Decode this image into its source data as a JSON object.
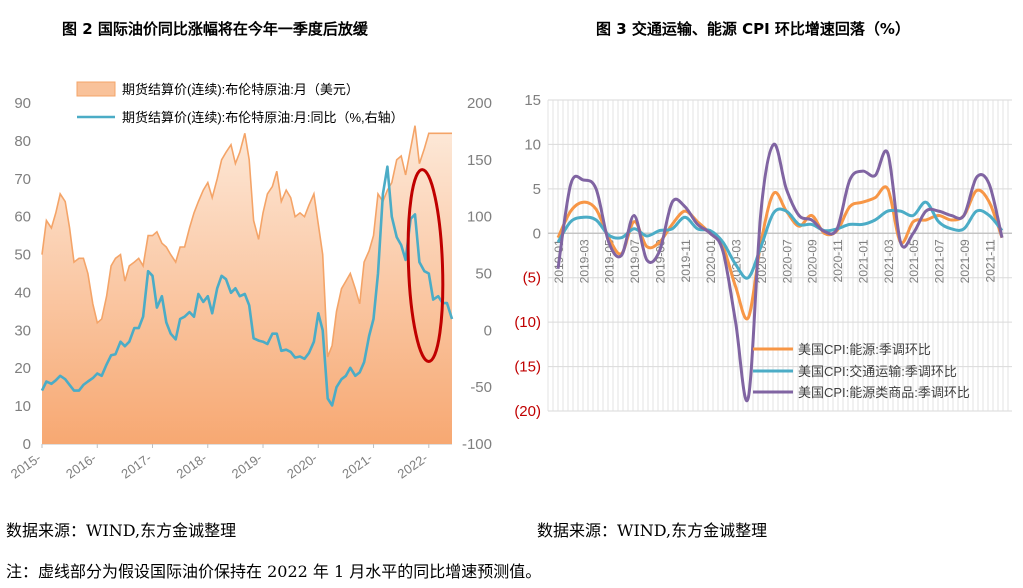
{
  "titles": {
    "left": "图 2   国际油价同比涨幅将在今年一季度后放缓",
    "right": "图 3  交通运输、能源 CPI 环比增速回落（%）"
  },
  "sources": {
    "left": "数据来源：WIND,东方金诚整理",
    "right": "数据来源：WIND,东方金诚整理"
  },
  "note": "注：虚线部分为假设国际油价保持在 2022 年 1 月水平的同比增速预测值。",
  "colors": {
    "area_top": "#F4A468",
    "area_fill_light": "#FDE7D4",
    "area_fill_dark": "#F6B183",
    "teal": "#4BACC6",
    "orange": "#F79646",
    "purple": "#8064A2",
    "red_ellipse": "#C00000",
    "neg_label": "#C00000"
  },
  "chart_data": [
    {
      "type": "area+line",
      "title": "",
      "legend": [
        "期货结算价(连续):布伦特原油:月（美元）",
        "期货结算价(连续):布伦特原油:月:同比（%,右轴）"
      ],
      "legend_position": "top",
      "x_tick_labels": [
        "2015-",
        "2016-",
        "2017-",
        "2018-",
        "2019-",
        "2020-",
        "2021-",
        "2022-"
      ],
      "x_range": [
        2015.0,
        2022.42
      ],
      "y_left": {
        "range": [
          0,
          90
        ],
        "ticks": [
          0,
          10,
          20,
          30,
          40,
          50,
          60,
          70,
          80,
          90
        ]
      },
      "y_right": {
        "range": [
          -100,
          200
        ],
        "ticks": [
          -100,
          -50,
          0,
          50,
          100,
          150,
          200
        ]
      },
      "series": [
        {
          "name": "期货结算价(连续):布伦特原油:月（美元）",
          "type": "area",
          "axis": "left",
          "points": [
            [
              2015.0,
              50
            ],
            [
              2015.08,
              59
            ],
            [
              2015.17,
              57
            ],
            [
              2015.25,
              61
            ],
            [
              2015.33,
              66
            ],
            [
              2015.42,
              64
            ],
            [
              2015.5,
              57
            ],
            [
              2015.58,
              48
            ],
            [
              2015.67,
              49
            ],
            [
              2015.75,
              49
            ],
            [
              2015.83,
              45
            ],
            [
              2015.92,
              37
            ],
            [
              2016.0,
              32
            ],
            [
              2016.08,
              33
            ],
            [
              2016.17,
              39
            ],
            [
              2016.25,
              47
            ],
            [
              2016.33,
              49
            ],
            [
              2016.42,
              50
            ],
            [
              2016.5,
              43
            ],
            [
              2016.58,
              47
            ],
            [
              2016.67,
              48
            ],
            [
              2016.75,
              49
            ],
            [
              2016.83,
              47
            ],
            [
              2016.92,
              55
            ],
            [
              2017.0,
              55
            ],
            [
              2017.08,
              56
            ],
            [
              2017.17,
              53
            ],
            [
              2017.25,
              52
            ],
            [
              2017.33,
              50
            ],
            [
              2017.42,
              48
            ],
            [
              2017.5,
              52
            ],
            [
              2017.58,
              52
            ],
            [
              2017.67,
              57
            ],
            [
              2017.75,
              61
            ],
            [
              2017.83,
              64
            ],
            [
              2017.92,
              67
            ],
            [
              2018.0,
              69
            ],
            [
              2018.08,
              65
            ],
            [
              2018.17,
              70
            ],
            [
              2018.25,
              75
            ],
            [
              2018.33,
              77
            ],
            [
              2018.42,
              79
            ],
            [
              2018.5,
              74
            ],
            [
              2018.58,
              77
            ],
            [
              2018.67,
              82
            ],
            [
              2018.75,
              75
            ],
            [
              2018.83,
              59
            ],
            [
              2018.92,
              54
            ],
            [
              2019.0,
              61
            ],
            [
              2019.08,
              66
            ],
            [
              2019.17,
              68
            ],
            [
              2019.25,
              72
            ],
            [
              2019.33,
              64
            ],
            [
              2019.42,
              67
            ],
            [
              2019.5,
              65
            ],
            [
              2019.58,
              60
            ],
            [
              2019.67,
              61
            ],
            [
              2019.75,
              60
            ],
            [
              2019.83,
              63
            ],
            [
              2019.92,
              66
            ],
            [
              2020.0,
              58
            ],
            [
              2020.08,
              50
            ],
            [
              2020.17,
              23
            ],
            [
              2020.25,
              26
            ],
            [
              2020.33,
              35
            ],
            [
              2020.42,
              41
            ],
            [
              2020.5,
              43
            ],
            [
              2020.58,
              45
            ],
            [
              2020.67,
              41
            ],
            [
              2020.75,
              37
            ],
            [
              2020.83,
              48
            ],
            [
              2020.92,
              51
            ],
            [
              2021.0,
              55
            ],
            [
              2021.08,
              66
            ],
            [
              2021.17,
              64
            ],
            [
              2021.25,
              67
            ],
            [
              2021.33,
              69
            ],
            [
              2021.42,
              75
            ],
            [
              2021.5,
              76
            ],
            [
              2021.58,
              71
            ],
            [
              2021.67,
              78
            ],
            [
              2021.75,
              84
            ],
            [
              2021.83,
              74
            ],
            [
              2021.92,
              78
            ],
            [
              2022.0,
              82
            ],
            [
              2022.08,
              82
            ],
            [
              2022.17,
              82
            ],
            [
              2022.25,
              82
            ],
            [
              2022.33,
              82
            ],
            [
              2022.42,
              82
            ]
          ]
        },
        {
          "name": "期货结算价(连续):布伦特原油:月:同比（%,右轴）",
          "type": "line",
          "axis": "right",
          "points": [
            [
              2015.0,
              -53
            ],
            [
              2015.08,
              -45
            ],
            [
              2015.17,
              -47
            ],
            [
              2015.25,
              -44
            ],
            [
              2015.33,
              -40
            ],
            [
              2015.42,
              -43
            ],
            [
              2015.5,
              -48
            ],
            [
              2015.58,
              -53
            ],
            [
              2015.67,
              -53
            ],
            [
              2015.75,
              -48
            ],
            [
              2015.83,
              -45
            ],
            [
              2015.92,
              -42
            ],
            [
              2016.0,
              -38
            ],
            [
              2016.08,
              -40
            ],
            [
              2016.17,
              -30
            ],
            [
              2016.25,
              -22
            ],
            [
              2016.33,
              -21
            ],
            [
              2016.42,
              -10
            ],
            [
              2016.5,
              -14
            ],
            [
              2016.58,
              -10
            ],
            [
              2016.67,
              2
            ],
            [
              2016.75,
              2
            ],
            [
              2016.83,
              12
            ],
            [
              2016.92,
              52
            ],
            [
              2017.0,
              48
            ],
            [
              2017.08,
              20
            ],
            [
              2017.17,
              30
            ],
            [
              2017.25,
              7
            ],
            [
              2017.33,
              -3
            ],
            [
              2017.42,
              -8
            ],
            [
              2017.5,
              10
            ],
            [
              2017.58,
              12
            ],
            [
              2017.67,
              16
            ],
            [
              2017.75,
              12
            ],
            [
              2017.83,
              32
            ],
            [
              2017.92,
              25
            ],
            [
              2018.0,
              30
            ],
            [
              2018.08,
              15
            ],
            [
              2018.17,
              37
            ],
            [
              2018.25,
              48
            ],
            [
              2018.33,
              45
            ],
            [
              2018.42,
              33
            ],
            [
              2018.5,
              37
            ],
            [
              2018.58,
              30
            ],
            [
              2018.67,
              32
            ],
            [
              2018.75,
              22
            ],
            [
              2018.83,
              -7
            ],
            [
              2018.92,
              -9
            ],
            [
              2019.0,
              -10
            ],
            [
              2019.08,
              -12
            ],
            [
              2019.17,
              -3
            ],
            [
              2019.25,
              -3
            ],
            [
              2019.33,
              -18
            ],
            [
              2019.42,
              -17
            ],
            [
              2019.5,
              -19
            ],
            [
              2019.58,
              -24
            ],
            [
              2019.67,
              -23
            ],
            [
              2019.75,
              -25
            ],
            [
              2019.83,
              -20
            ],
            [
              2019.92,
              -10
            ],
            [
              2020.0,
              15
            ],
            [
              2020.08,
              0
            ],
            [
              2020.17,
              -60
            ],
            [
              2020.25,
              -66
            ],
            [
              2020.33,
              -50
            ],
            [
              2020.42,
              -43
            ],
            [
              2020.5,
              -40
            ],
            [
              2020.58,
              -33
            ],
            [
              2020.67,
              -40
            ],
            [
              2020.75,
              -37
            ],
            [
              2020.83,
              -28
            ],
            [
              2020.92,
              -5
            ],
            [
              2021.0,
              10
            ],
            [
              2021.08,
              50
            ],
            [
              2021.17,
              120
            ],
            [
              2021.25,
              144
            ],
            [
              2021.33,
              100
            ],
            [
              2021.42,
              82
            ],
            [
              2021.5,
              75
            ],
            [
              2021.58,
              62
            ],
            [
              2021.67,
              98
            ],
            [
              2021.75,
              102
            ],
            [
              2021.83,
              60
            ],
            [
              2021.92,
              52
            ],
            [
              2022.0,
              50
            ],
            [
              2022.08,
              27
            ],
            [
              2022.17,
              30
            ],
            [
              2022.25,
              24
            ],
            [
              2022.33,
              24
            ],
            [
              2022.42,
              10
            ]
          ]
        }
      ],
      "annotation": "ellipse"
    },
    {
      "type": "line",
      "title": "",
      "legend": [
        "美国CPI:能源:季调环比",
        "美国CPI:交通运输:季调环比",
        "美国CPI:能源类商品:季调环比"
      ],
      "legend_position": "bottom-right",
      "x": [
        "2019-01",
        "2019-02",
        "2019-03",
        "2019-04",
        "2019-05",
        "2019-06",
        "2019-07",
        "2019-08",
        "2019-09",
        "2019-10",
        "2019-11",
        "2019-12",
        "2020-01",
        "2020-02",
        "2020-03",
        "2020-04",
        "2020-05",
        "2020-06",
        "2020-07",
        "2020-08",
        "2020-09",
        "2020-10",
        "2020-11",
        "2020-12",
        "2021-01",
        "2021-02",
        "2021-03",
        "2021-04",
        "2021-05",
        "2021-06",
        "2021-07",
        "2021-08",
        "2021-09",
        "2021-10",
        "2021-11",
        "2021-12"
      ],
      "x_tick_labels": [
        "2019-01",
        "2019-03",
        "2019-05",
        "2019-07",
        "2019-09",
        "2019-11",
        "2020-01",
        "2020-03",
        "2020-05",
        "2020-07",
        "2020-09",
        "2020-11",
        "2021-01",
        "2021-03",
        "2021-05",
        "2021-07",
        "2021-09",
        "2021-11"
      ],
      "y_range": [
        -20,
        15
      ],
      "y_ticks": [
        15,
        10,
        5,
        0,
        -5,
        -10,
        -15,
        -20
      ],
      "y_tick_labels": [
        "15",
        "10",
        "5",
        "0",
        "(5)",
        "(10)",
        "(15)",
        "(20)"
      ],
      "grid": true,
      "series": [
        {
          "name": "美国CPI:能源:季调环比",
          "values": [
            -0.5,
            2.5,
            3.5,
            2.7,
            -0.5,
            -2.3,
            1.3,
            -1.5,
            -1.0,
            1.0,
            2.5,
            1.3,
            0,
            -1.5,
            -6.0,
            -9.5,
            -1.0,
            4.5,
            2.5,
            0.8,
            2.0,
            0,
            0.3,
            3.0,
            3.5,
            4.0,
            5.0,
            -1.0,
            1.3,
            1.5,
            2.0,
            1.5,
            2.0,
            4.8,
            3.5,
            -0.5
          ]
        },
        {
          "name": "美国CPI:交通运输:季调环比",
          "values": [
            -1.0,
            1.3,
            1.8,
            1.5,
            -0.2,
            -0.5,
            0.5,
            -0.3,
            0.3,
            0.5,
            1.8,
            0.5,
            0.3,
            -1.0,
            -3.5,
            -5.0,
            -1.5,
            2.3,
            2.5,
            1.0,
            1.0,
            0.3,
            0.5,
            1.0,
            1.0,
            1.5,
            2.5,
            2.5,
            2.0,
            3.5,
            1.3,
            0.5,
            0.5,
            2.5,
            2.0,
            0.3
          ]
        },
        {
          "name": "美国CPI:能源类商品:季调环比",
          "values": [
            -4.0,
            5.5,
            6.0,
            5.0,
            -1.0,
            -2.5,
            2.0,
            -3.0,
            -2.0,
            3.5,
            3.0,
            1.0,
            0,
            -2.0,
            -10.0,
            -18.5,
            2.5,
            10.0,
            5.0,
            2.0,
            1.5,
            0.2,
            0.5,
            6.0,
            7.0,
            6.5,
            9.0,
            -1.0,
            0,
            2.5,
            2.5,
            2.0,
            2.0,
            6.3,
            5.5,
            -0.5
          ]
        }
      ]
    }
  ]
}
